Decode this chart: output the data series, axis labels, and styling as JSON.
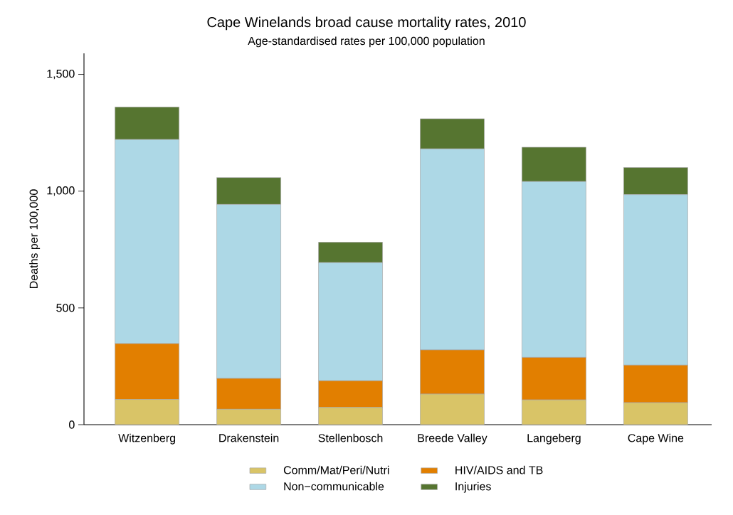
{
  "chart_data": {
    "type": "bar",
    "stacked": true,
    "title": "Cape Winelands broad cause mortality rates, 2010",
    "subtitle": "Age-standardised rates per 100,000 population",
    "ylabel": "Deaths per 100,000",
    "categories": [
      "Witzenberg",
      "Drakenstein",
      "Stellenbosch",
      "Breede Valley",
      "Langeberg",
      "Cape Wine"
    ],
    "series": [
      {
        "name": "Comm/Mat/Peri/Nutri",
        "color": "#d9c467",
        "values": [
          108,
          66,
          74,
          131,
          106,
          94
        ]
      },
      {
        "name": "HIV/AIDS and TB",
        "color": "#e27f00",
        "values": [
          239,
          132,
          114,
          189,
          182,
          161
        ]
      },
      {
        "name": "Non−communicable",
        "color": "#add8e6",
        "values": [
          874,
          745,
          506,
          861,
          753,
          730
        ]
      },
      {
        "name": "Injuries",
        "color": "#567530",
        "values": [
          139,
          115,
          87,
          129,
          147,
          116
        ]
      }
    ],
    "ylim": [
      0,
      1590
    ],
    "yticks": [
      0,
      500,
      {
        "value": 1000,
        "label": "1,000"
      },
      {
        "value": 1500,
        "label": "1,500"
      }
    ],
    "legend": "bottom"
  }
}
